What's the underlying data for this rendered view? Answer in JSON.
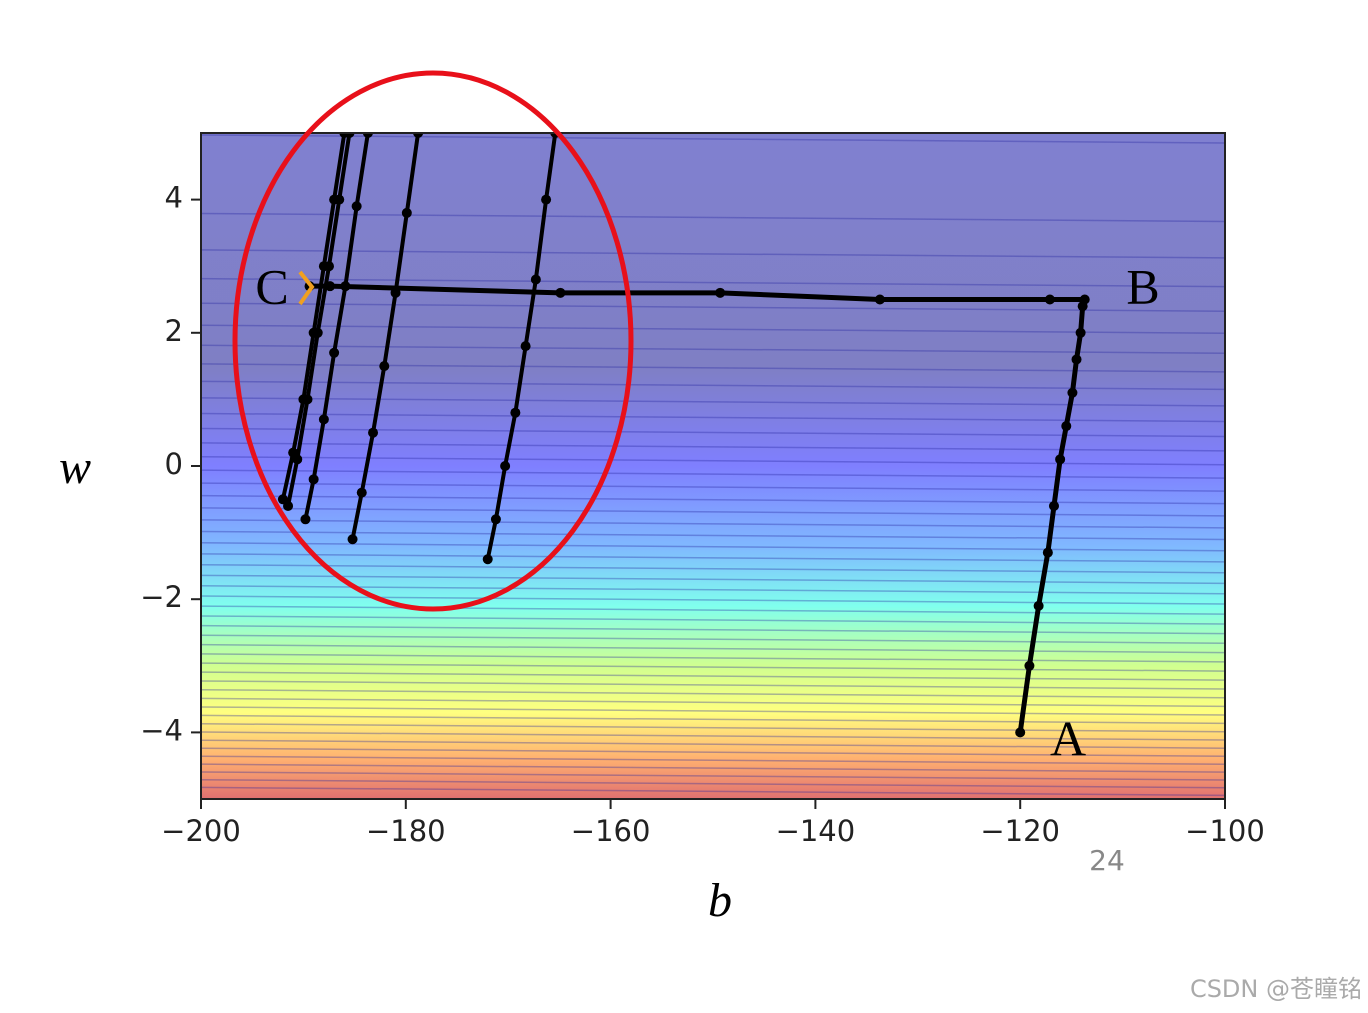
{
  "chart_data": {
    "type": "line",
    "x_label": "b",
    "y_label": "w",
    "xlim": [
      -200,
      -100
    ],
    "ylim": [
      -5,
      5
    ],
    "xticks": [
      {
        "value": -200,
        "label": "−200"
      },
      {
        "value": -180,
        "label": "−180"
      },
      {
        "value": -160,
        "label": "−160"
      },
      {
        "value": -140,
        "label": "−140"
      },
      {
        "value": -120,
        "label": "−120"
      },
      {
        "value": -100,
        "label": "−100"
      }
    ],
    "yticks": [
      {
        "value": -4,
        "label": "−4"
      },
      {
        "value": -2,
        "label": "−2"
      },
      0,
      2,
      4
    ],
    "series": [
      {
        "color": "#000000",
        "x": [
          -120,
          -119.1,
          -118.2,
          -117.3,
          -116.7,
          -116.1,
          -115.5,
          -114.9,
          -114.5,
          -114.1,
          -113.9,
          -113.7,
          -117.1,
          -133.7,
          -149.3,
          -164.9,
          -187.4,
          -189.4
        ],
        "y": [
          -4,
          -3,
          -2.1,
          -1.3,
          -0.6,
          0.1,
          0.6,
          1.1,
          1.6,
          2,
          2.4,
          2.5,
          2.5,
          2.5,
          2.6,
          2.6,
          2.7,
          2.7
        ]
      },
      {
        "color": "#000000",
        "x": [
          -172,
          -171.2,
          -170.3,
          -169.3,
          -168.3,
          -167.3,
          -166.3,
          -165.4
        ],
        "y": [
          -1.4,
          -0.8,
          0,
          0.8,
          1.8,
          2.8,
          4,
          5
        ]
      },
      {
        "color": "#000000",
        "x": [
          -185.2,
          -184.3,
          -183.2,
          -182.1,
          -181,
          -179.9,
          -178.8
        ],
        "y": [
          -1.1,
          -0.4,
          0.5,
          1.5,
          2.6,
          3.8,
          5
        ]
      },
      {
        "color": "#000000",
        "x": [
          -189.8,
          -189,
          -188,
          -187,
          -185.9,
          -184.8,
          -183.7
        ],
        "y": [
          -0.8,
          -0.2,
          0.7,
          1.7,
          2.7,
          3.9,
          5
        ]
      },
      {
        "color": "#000000",
        "x": [
          -191.5,
          -190.6,
          -189.6,
          -188.6,
          -187.5,
          -186.5,
          -185.5
        ],
        "y": [
          -0.6,
          0.1,
          1,
          2,
          3,
          4,
          5
        ]
      },
      {
        "color": "#000000",
        "x": [
          -192,
          -191,
          -190,
          -189,
          -188,
          -187,
          -186
        ],
        "y": [
          -0.5,
          0.2,
          1,
          2,
          3,
          4,
          5
        ]
      }
    ],
    "annotations": [
      "A",
      "B",
      "C",
      "24"
    ],
    "watermark": "CSDN @苍瞳铭"
  }
}
